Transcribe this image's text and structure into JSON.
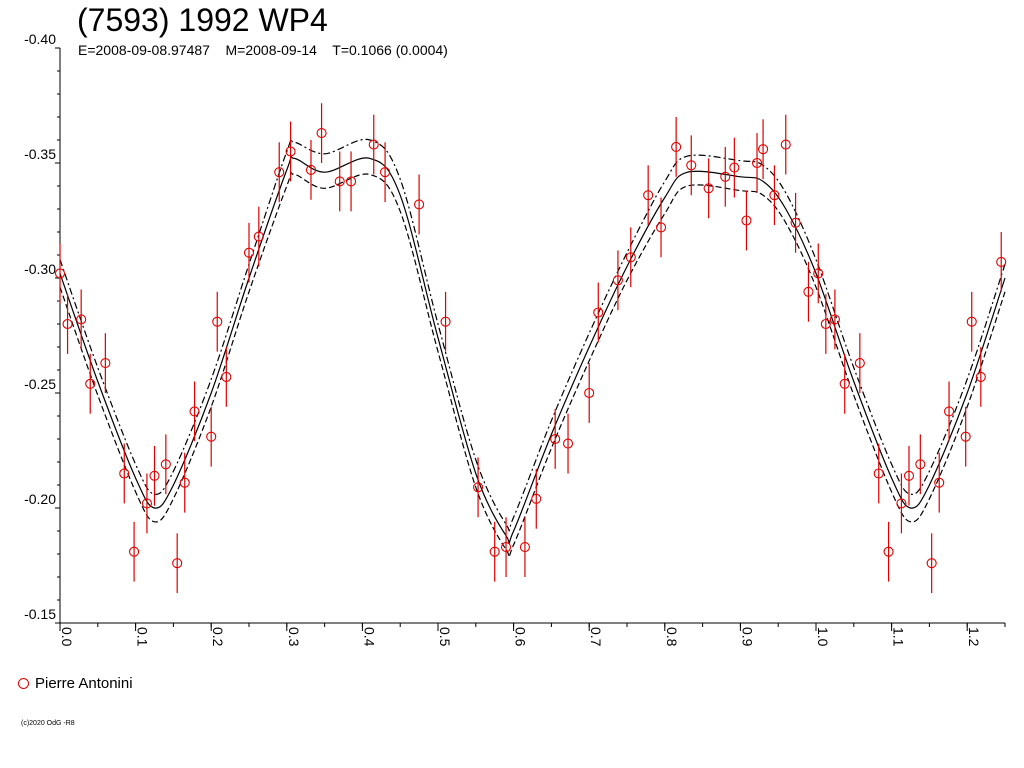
{
  "chart_data": {
    "type": "scatter",
    "title": "(7593) 1992 WP4",
    "subtitle": "E=2008-09-08.97487    M=2008-09-14    T=0.1066 (0.0004)",
    "xlabel": "",
    "ylabel": "",
    "xlim": [
      0.0,
      1.25
    ],
    "ylim": [
      -0.4,
      -0.15
    ],
    "y_inverted": true,
    "grid": false,
    "x_ticks": [
      "0.0",
      "0.1",
      "0.2",
      "0.3",
      "0.4",
      "0.5",
      "0.6",
      "0.7",
      "0.8",
      "0.9",
      "1.0",
      "1.1",
      "1.2"
    ],
    "y_ticks": [
      "-0.40",
      "-0.35",
      "-0.30",
      "-0.25",
      "-0.20",
      "-0.15"
    ],
    "legend": {
      "position": "bottom-left",
      "entries": [
        {
          "name": "Pierre Antonini",
          "color": "#e00000",
          "marker": "open-circle"
        }
      ]
    },
    "series": [
      {
        "name": "Pierre Antonini",
        "color": "#e00000",
        "error": 0.013,
        "points": [
          [
            0.0,
            -0.302
          ],
          [
            0.01,
            -0.28
          ],
          [
            0.028,
            -0.282
          ],
          [
            0.04,
            -0.254
          ],
          [
            0.06,
            -0.263
          ],
          [
            0.085,
            -0.215
          ],
          [
            0.098,
            -0.181
          ],
          [
            0.115,
            -0.202
          ],
          [
            0.125,
            -0.214
          ],
          [
            0.14,
            -0.219
          ],
          [
            0.155,
            -0.176
          ],
          [
            0.165,
            -0.211
          ],
          [
            0.178,
            -0.242
          ],
          [
            0.2,
            -0.231
          ],
          [
            0.208,
            -0.281
          ],
          [
            0.22,
            -0.257
          ],
          [
            0.25,
            -0.311
          ],
          [
            0.263,
            -0.318
          ],
          [
            0.29,
            -0.346
          ],
          [
            0.305,
            -0.355
          ],
          [
            0.332,
            -0.347
          ],
          [
            0.346,
            -0.363
          ],
          [
            0.37,
            -0.342
          ],
          [
            0.385,
            -0.342
          ],
          [
            0.415,
            -0.358
          ],
          [
            0.43,
            -0.346
          ],
          [
            0.475,
            -0.332
          ],
          [
            0.51,
            -0.281
          ],
          [
            0.553,
            -0.209
          ],
          [
            0.575,
            -0.181
          ],
          [
            0.59,
            -0.183
          ],
          [
            0.615,
            -0.183
          ],
          [
            0.63,
            -0.204
          ],
          [
            0.655,
            -0.23
          ],
          [
            0.672,
            -0.228
          ],
          [
            0.7,
            -0.25
          ],
          [
            0.712,
            -0.285
          ],
          [
            0.738,
            -0.299
          ],
          [
            0.755,
            -0.309
          ],
          [
            0.778,
            -0.336
          ],
          [
            0.795,
            -0.322
          ],
          [
            0.815,
            -0.357
          ],
          [
            0.835,
            -0.349
          ],
          [
            0.858,
            -0.339
          ],
          [
            0.88,
            -0.344
          ],
          [
            0.892,
            -0.348
          ],
          [
            0.908,
            -0.325
          ],
          [
            0.922,
            -0.35
          ],
          [
            0.93,
            -0.356
          ],
          [
            0.945,
            -0.336
          ],
          [
            0.96,
            -0.358
          ],
          [
            0.973,
            -0.324
          ],
          [
            0.99,
            -0.294
          ],
          [
            1.003,
            -0.302
          ],
          [
            1.013,
            -0.28
          ],
          [
            1.025,
            -0.282
          ],
          [
            1.038,
            -0.254
          ],
          [
            1.058,
            -0.263
          ],
          [
            1.083,
            -0.215
          ],
          [
            1.096,
            -0.181
          ],
          [
            1.113,
            -0.202
          ],
          [
            1.123,
            -0.214
          ],
          [
            1.138,
            -0.219
          ],
          [
            1.153,
            -0.176
          ],
          [
            1.163,
            -0.211
          ],
          [
            1.176,
            -0.242
          ],
          [
            1.198,
            -0.231
          ],
          [
            1.206,
            -0.281
          ],
          [
            1.218,
            -0.257
          ],
          [
            1.245,
            -0.307
          ]
        ]
      }
    ],
    "curves": [
      {
        "style": "solid",
        "color": "#000000",
        "x": [
          0.0,
          0.05,
          0.1,
          0.125,
          0.15,
          0.2,
          0.25,
          0.3,
          0.31,
          0.35,
          0.41,
          0.45,
          0.5,
          0.55,
          0.59,
          0.6,
          0.65,
          0.7,
          0.75,
          0.8,
          0.83,
          0.9,
          0.93,
          0.96,
          1.0,
          1.05,
          1.1,
          1.125,
          1.15,
          1.2,
          1.25
        ],
        "y": [
          -0.302,
          -0.255,
          -0.213,
          -0.2,
          -0.21,
          -0.25,
          -0.3,
          -0.347,
          -0.352,
          -0.346,
          -0.352,
          -0.336,
          -0.274,
          -0.215,
          -0.188,
          -0.19,
          -0.232,
          -0.27,
          -0.305,
          -0.335,
          -0.346,
          -0.344,
          -0.342,
          -0.33,
          -0.302,
          -0.255,
          -0.213,
          -0.2,
          -0.21,
          -0.25,
          -0.3
        ]
      },
      {
        "style": "dash-dot",
        "color": "#000000",
        "x": [
          0.0,
          0.05,
          0.1,
          0.125,
          0.15,
          0.2,
          0.25,
          0.3,
          0.31,
          0.35,
          0.41,
          0.45,
          0.5,
          0.55,
          0.59,
          0.6,
          0.65,
          0.7,
          0.75,
          0.8,
          0.83,
          0.9,
          0.93,
          0.96,
          1.0,
          1.05,
          1.1,
          1.125,
          1.15,
          1.2,
          1.25
        ],
        "y": [
          -0.308,
          -0.261,
          -0.219,
          -0.206,
          -0.216,
          -0.256,
          -0.306,
          -0.355,
          -0.359,
          -0.354,
          -0.36,
          -0.343,
          -0.28,
          -0.221,
          -0.193,
          -0.196,
          -0.238,
          -0.276,
          -0.311,
          -0.342,
          -0.353,
          -0.351,
          -0.349,
          -0.337,
          -0.308,
          -0.261,
          -0.219,
          -0.206,
          -0.216,
          -0.256,
          -0.306
        ]
      },
      {
        "style": "dashed",
        "color": "#000000",
        "x": [
          0.0,
          0.05,
          0.1,
          0.125,
          0.15,
          0.2,
          0.25,
          0.3,
          0.31,
          0.35,
          0.41,
          0.45,
          0.5,
          0.55,
          0.59,
          0.6,
          0.65,
          0.7,
          0.75,
          0.8,
          0.83,
          0.9,
          0.93,
          0.96,
          1.0,
          1.05,
          1.1,
          1.125,
          1.15,
          1.2,
          1.25
        ],
        "y": [
          -0.296,
          -0.249,
          -0.207,
          -0.194,
          -0.204,
          -0.244,
          -0.294,
          -0.34,
          -0.345,
          -0.339,
          -0.345,
          -0.329,
          -0.268,
          -0.209,
          -0.182,
          -0.184,
          -0.226,
          -0.264,
          -0.299,
          -0.328,
          -0.34,
          -0.338,
          -0.336,
          -0.324,
          -0.296,
          -0.249,
          -0.207,
          -0.194,
          -0.204,
          -0.244,
          -0.294
        ]
      }
    ],
    "copyright": "(c)2020 OdG -R8"
  }
}
